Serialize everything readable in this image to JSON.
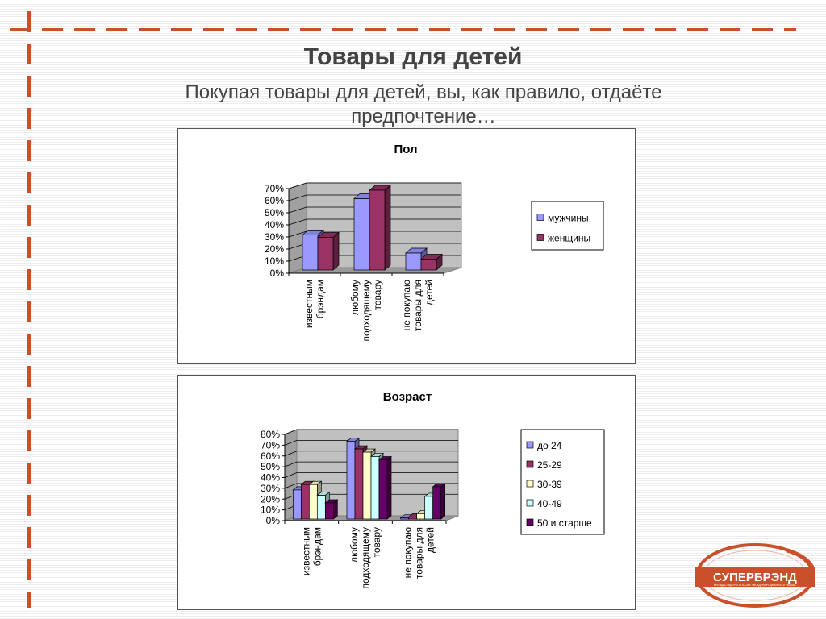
{
  "slide": {
    "title": "Товары для детей",
    "subtitle": "Покупая товары для детей, вы, как правило, отдаёте предпочтение…"
  },
  "logo": {
    "text": "СУПЕРБРЭНД",
    "tagline": "БРЕНДЫ-ЛИДЕРЫ РОССИИ. МЕЖДУНАРОДНАЯ ПРОГРАММА.",
    "accent": "#c9502a"
  },
  "chart_data": [
    {
      "type": "bar",
      "title": "Пол",
      "categories": [
        [
          "известным",
          "брэндам"
        ],
        [
          "любому",
          "подходящему",
          "товару"
        ],
        [
          "не покупаю",
          "товары для",
          "детей"
        ]
      ],
      "series": [
        {
          "name": "мужчины",
          "color": "#9999ff",
          "values": [
            0.29,
            0.59,
            0.14
          ]
        },
        {
          "name": "женщины",
          "color": "#993366",
          "values": [
            0.27,
            0.66,
            0.09
          ]
        }
      ],
      "yticks": [
        "0%",
        "10%",
        "20%",
        "30%",
        "40%",
        "50%",
        "60%",
        "70%"
      ],
      "ylim": [
        0,
        0.7
      ],
      "grid": true,
      "legend": "right"
    },
    {
      "type": "bar",
      "title": "Возраст",
      "categories": [
        [
          "известным",
          "брэндам"
        ],
        [
          "любому",
          "подходящему",
          "товару"
        ],
        [
          "не покупаю",
          "товары для",
          "детей"
        ]
      ],
      "series": [
        {
          "name": "до 24",
          "color": "#9999ff",
          "values": [
            0.27,
            0.72,
            0.01
          ]
        },
        {
          "name": "25-29",
          "color": "#993366",
          "values": [
            0.32,
            0.65,
            0.02
          ]
        },
        {
          "name": "30-39",
          "color": "#ffffcc",
          "values": [
            0.32,
            0.62,
            0.05
          ]
        },
        {
          "name": "40-49",
          "color": "#ccffff",
          "values": [
            0.22,
            0.58,
            0.21
          ]
        },
        {
          "name": "50 и старше",
          "color": "#660066",
          "values": [
            0.15,
            0.55,
            0.3
          ]
        }
      ],
      "yticks": [
        "0%",
        "10%",
        "20%",
        "30%",
        "40%",
        "50%",
        "60%",
        "70%",
        "80%"
      ],
      "ylim": [
        0,
        0.8
      ],
      "grid": true,
      "legend": "right"
    }
  ]
}
